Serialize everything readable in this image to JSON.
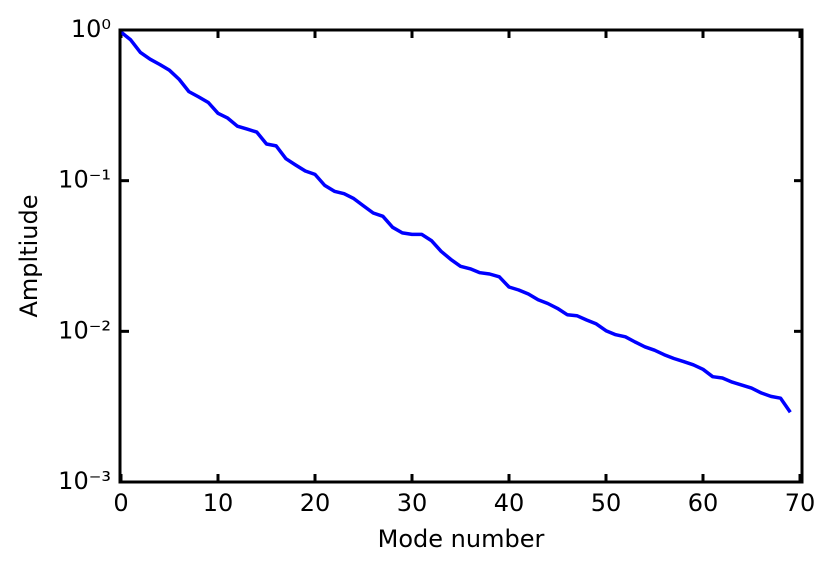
{
  "chart_data": {
    "type": "line",
    "xlabel": "Mode number",
    "ylabel": "Ampltiude",
    "log_y": true,
    "x": [
      0,
      1,
      2,
      3,
      4,
      5,
      6,
      7,
      8,
      9,
      10,
      11,
      12,
      13,
      14,
      15,
      16,
      17,
      18,
      19,
      20,
      21,
      22,
      23,
      24,
      25,
      26,
      27,
      28,
      29,
      30,
      31,
      32,
      33,
      34,
      35,
      36,
      37,
      38,
      39,
      40,
      41,
      42,
      43,
      44,
      45,
      46,
      47,
      48,
      49,
      50,
      51,
      52,
      53,
      54,
      55,
      56,
      57,
      58,
      59,
      60,
      61,
      62,
      63,
      64,
      65,
      66,
      67,
      68,
      69
    ],
    "series": [
      {
        "color": "#0000ff",
        "values": [
          0.97,
          0.86,
          0.71,
          0.64,
          0.59,
          0.54,
          0.47,
          0.39,
          0.36,
          0.33,
          0.28,
          0.26,
          0.23,
          0.22,
          0.21,
          0.175,
          0.17,
          0.14,
          0.127,
          0.116,
          0.11,
          0.093,
          0.085,
          0.082,
          0.076,
          0.068,
          0.061,
          0.058,
          0.049,
          0.045,
          0.044,
          0.044,
          0.04,
          0.034,
          0.03,
          0.027,
          0.026,
          0.0245,
          0.024,
          0.023,
          0.0197,
          0.0188,
          0.0177,
          0.0162,
          0.0153,
          0.0142,
          0.0129,
          0.0127,
          0.0119,
          0.0112,
          0.0101,
          0.0095,
          0.0092,
          0.0085,
          0.0079,
          0.0075,
          0.007,
          0.0066,
          0.0063,
          0.006,
          0.0056,
          0.005,
          0.0049,
          0.0046,
          0.0044,
          0.0042,
          0.0039,
          0.0037,
          0.0036,
          0.0029
        ]
      }
    ],
    "xlim": [
      0,
      70
    ],
    "xticks": [
      0,
      10,
      20,
      30,
      40,
      50,
      60,
      70
    ],
    "ylim": [
      0.001,
      1
    ],
    "yticks": [
      {
        "value": 1,
        "label": "10⁰"
      },
      {
        "value": 0.1,
        "label": "10⁻¹"
      },
      {
        "value": 0.01,
        "label": "10⁻²"
      },
      {
        "value": 0.001,
        "label": "10⁻³"
      }
    ]
  }
}
